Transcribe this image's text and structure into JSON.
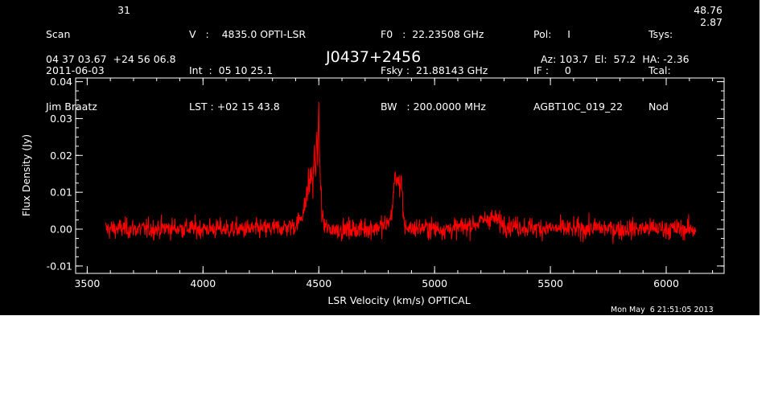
{
  "header": {
    "col1": {
      "scan_label": "Scan",
      "scan_value": "31",
      "date": "2011-06-03",
      "observer": "Jim Braatz"
    },
    "col2": {
      "v_line": "V   :    4835.0 OPTI-LSR",
      "int_line": "Int  :  05 10 25.1",
      "lst_line": "LST : +02 15 43.8"
    },
    "col3": {
      "f0_line": "F0   :  22.23508 GHz",
      "fsky_line": "Fsky :  21.88143 GHz",
      "bw_line": "BW   : 200.0000 MHz"
    },
    "col4": {
      "pol_line": "Pol:     I",
      "if_line": "IF :     0",
      "project": "AGBT10C_019_22"
    },
    "col5": {
      "tsys_label": "Tsys:",
      "tsys_value": "48.76",
      "tcal_label": "Tcal:",
      "tcal_value": "2.87",
      "mode": "Nod"
    },
    "coords": "04 37 03.67  +24 56 06.8",
    "source": "J0437+2456",
    "azel": "Az: 103.7  El:  57.2  HA: -2.36"
  },
  "timestamp": "Mon May  6 21:51:05 2013",
  "colors": {
    "background": "#000000",
    "axes": "#ffffff",
    "spectrum": "#ff0000"
  },
  "chart_data": {
    "type": "line",
    "xlabel": "LSR Velocity (km/s) OPTICAL",
    "ylabel": "Flux Density (Jy)",
    "xlim": [
      3450,
      6250
    ],
    "ylim": [
      -0.012,
      0.041
    ],
    "x_ticks": [
      3500,
      4000,
      4500,
      5000,
      5500,
      6000
    ],
    "y_ticks": [
      -0.01,
      0.0,
      0.01,
      0.02,
      0.03,
      0.04
    ],
    "y_tick_labels": [
      "-0.01",
      "0.00",
      "0.01",
      "0.02",
      "0.03",
      "0.04"
    ],
    "x_minor_step": 100,
    "y_minor_step": 0.0025,
    "grid": false,
    "series": [
      {
        "color": "#ff0000",
        "noise_rms_jy": 0.0015,
        "x": [
          3580,
          3650,
          3750,
          3850,
          3950,
          4050,
          4150,
          4250,
          4350,
          4400,
          4420,
          4440,
          4450,
          4460,
          4465,
          4470,
          4475,
          4480,
          4485,
          4490,
          4495,
          4500,
          4505,
          4510,
          4515,
          4520,
          4525,
          4540,
          4600,
          4650,
          4700,
          4750,
          4790,
          4810,
          4820,
          4825,
          4830,
          4835,
          4840,
          4845,
          4850,
          4855,
          4860,
          4865,
          4870,
          4880,
          4900,
          4950,
          5000,
          5050,
          5100,
          5150,
          5200,
          5230,
          5250,
          5280,
          5320,
          5400,
          5500,
          5600,
          5700,
          5800,
          5900,
          6000,
          6100,
          6130
        ],
        "y": [
          0.0,
          0.0002,
          0.0,
          0.0003,
          0.0002,
          0.0001,
          0.0,
          0.0,
          0.0005,
          0.001,
          0.003,
          0.006,
          0.01,
          0.013,
          0.012,
          0.017,
          0.011,
          0.021,
          0.014,
          0.024,
          0.019,
          0.033,
          0.016,
          0.009,
          0.004,
          0.002,
          0.0008,
          0.0,
          0.0,
          0.0,
          0.0002,
          0.0005,
          0.001,
          0.003,
          0.007,
          0.012,
          0.016,
          0.012,
          0.013,
          0.015,
          0.011,
          0.014,
          0.008,
          0.003,
          0.001,
          0.0005,
          0.0002,
          0.0004,
          0.0002,
          0.0,
          0.0003,
          0.001,
          0.002,
          0.003,
          0.003,
          0.002,
          0.001,
          0.0005,
          0.0002,
          0.0,
          0.0003,
          0.0,
          0.0002,
          0.0001,
          0.0,
          0.0
        ]
      }
    ]
  }
}
